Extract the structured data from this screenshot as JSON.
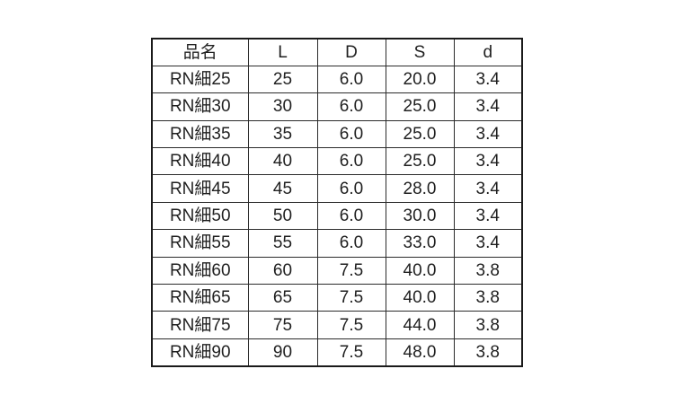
{
  "colors": {
    "background": "#ffffff",
    "border": "#1a1a1a",
    "text": "#1f1f1f"
  },
  "table": {
    "headers": [
      "品名",
      "L",
      "D",
      "S",
      "d"
    ],
    "rows": [
      [
        "RN細25",
        "25",
        "6.0",
        "20.0",
        "3.4"
      ],
      [
        "RN細30",
        "30",
        "6.0",
        "25.0",
        "3.4"
      ],
      [
        "RN細35",
        "35",
        "6.0",
        "25.0",
        "3.4"
      ],
      [
        "RN細40",
        "40",
        "6.0",
        "25.0",
        "3.4"
      ],
      [
        "RN細45",
        "45",
        "6.0",
        "28.0",
        "3.4"
      ],
      [
        "RN細50",
        "50",
        "6.0",
        "30.0",
        "3.4"
      ],
      [
        "RN細55",
        "55",
        "6.0",
        "33.0",
        "3.4"
      ],
      [
        "RN細60",
        "60",
        "7.5",
        "40.0",
        "3.8"
      ],
      [
        "RN細65",
        "65",
        "7.5",
        "40.0",
        "3.8"
      ],
      [
        "RN細75",
        "75",
        "7.5",
        "44.0",
        "3.8"
      ],
      [
        "RN細90",
        "90",
        "7.5",
        "48.0",
        "3.8"
      ]
    ]
  }
}
